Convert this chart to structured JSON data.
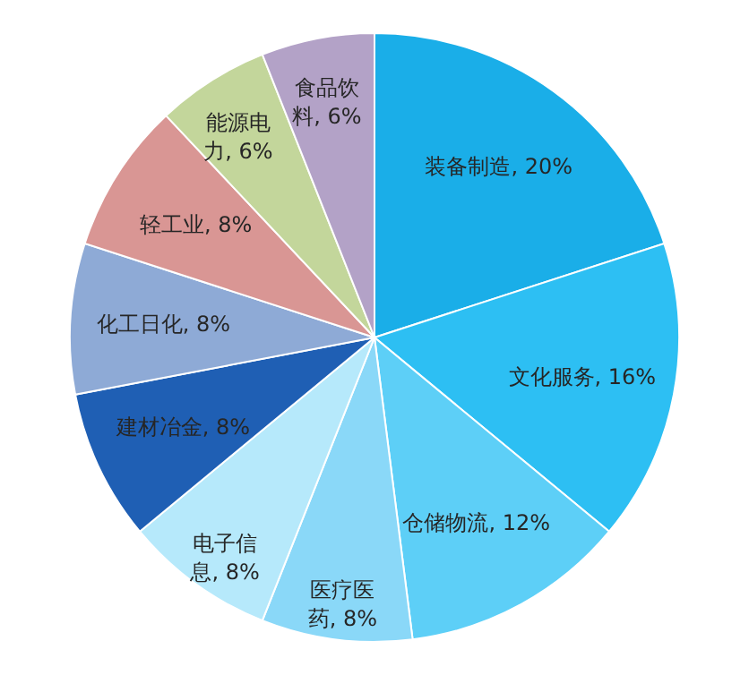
{
  "chart_data": {
    "type": "pie",
    "categories": [
      "装备制造",
      "文化服务",
      "仓储物流",
      "医疗医药",
      "电子信息",
      "建材冶金",
      "化工日化",
      "轻工业",
      "能源电力",
      "食品饮料"
    ],
    "values": [
      20,
      16,
      12,
      8,
      8,
      8,
      8,
      8,
      6,
      6
    ],
    "colors": [
      "#1aaee8",
      "#2dbff3",
      "#5dcff7",
      "#8ad8f8",
      "#b6e9fb",
      "#1f5fb4",
      "#8eaad6",
      "#d99694",
      "#c3d69b",
      "#b3a2c7"
    ],
    "value_labels": [
      "20%",
      "16%",
      "12%",
      "8%",
      "8%",
      "8%",
      "8%",
      "8%",
      "6%",
      "6%"
    ]
  }
}
